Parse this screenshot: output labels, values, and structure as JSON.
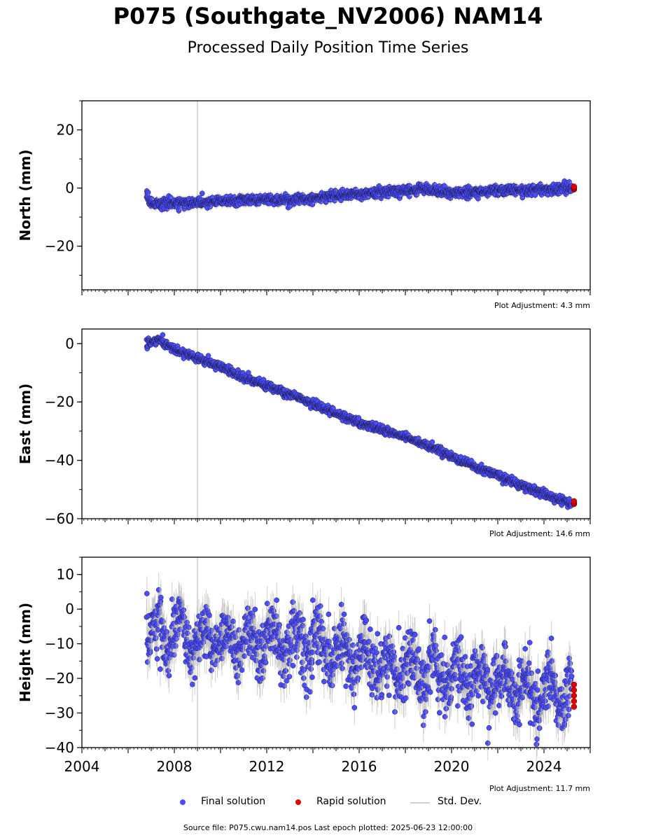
{
  "title": "P075 (Southgate_NV2006) NAM14",
  "subtitle": "Processed Daily Position Time Series",
  "legend": {
    "final": "Final solution",
    "rapid": "Rapid solution",
    "std": "Std. Dev."
  },
  "source": "Source file: P075.cwu.nam14.pos  Last epoch plotted: 2025-06-23 12:00:00",
  "colors": {
    "final": "#4b4bff",
    "rapid": "#e00000",
    "std": "#b0b0b0",
    "vline": "#cccccc"
  },
  "chart_data": [
    {
      "type": "scatter",
      "ylabel": "North (mm)",
      "ylim": [
        -35,
        30
      ],
      "xlim": [
        2004,
        2026
      ],
      "yticks": [
        -20,
        0,
        20
      ],
      "yticklabels": [
        "−20",
        "0",
        "20"
      ],
      "xticklabels": [],
      "adjustment": "Plot Adjustment: 4.3 mm",
      "vline_year": 2009,
      "series": [
        {
          "name": "Final solution",
          "x": [
            2006.8,
            2007.0,
            2007.5,
            2008.0,
            2008.5,
            2009.0,
            2010.0,
            2011.0,
            2012.0,
            2013.0,
            2014.0,
            2015.0,
            2016.0,
            2017.0,
            2018.0,
            2019.0,
            2020.0,
            2021.0,
            2022.0,
            2023.0,
            2024.0,
            2025.2
          ],
          "y": [
            -2,
            -5,
            -5.5,
            -5,
            -5,
            -4.8,
            -4.5,
            -4.3,
            -4,
            -4,
            -3.5,
            -2.5,
            -2,
            -1.5,
            -1,
            -0.5,
            -1.5,
            -1.5,
            -1,
            -0.8,
            -0.5,
            0
          ]
        },
        {
          "name": "Rapid solution",
          "x": [
            2025.3
          ],
          "y": [
            0
          ]
        }
      ]
    },
    {
      "type": "scatter",
      "ylabel": "East (mm)",
      "ylim": [
        -60,
        5
      ],
      "xlim": [
        2004,
        2026
      ],
      "yticks": [
        -60,
        -40,
        -20,
        0
      ],
      "yticklabels": [
        "−60",
        "−40",
        "−20",
        "0"
      ],
      "xticklabels": [],
      "adjustment": "Plot Adjustment: 14.6 mm",
      "vline_year": 2009,
      "series": [
        {
          "name": "Final solution",
          "x": [
            2006.8,
            2007.3,
            2008.0,
            2009.0,
            2010.0,
            2011.0,
            2012.0,
            2013.0,
            2014.0,
            2015.0,
            2016.0,
            2017.0,
            2018.0,
            2019.0,
            2020.0,
            2021.0,
            2022.0,
            2023.0,
            2024.0,
            2025.2
          ],
          "y": [
            -0.5,
            1.5,
            -2,
            -5,
            -8,
            -11.5,
            -14.5,
            -17.5,
            -20.5,
            -24,
            -27,
            -29.5,
            -32,
            -35,
            -38.5,
            -42,
            -45,
            -48.5,
            -51.5,
            -55
          ]
        },
        {
          "name": "Rapid solution",
          "x": [
            2025.3
          ],
          "y": [
            -54.5
          ]
        }
      ]
    },
    {
      "type": "scatter",
      "ylabel": "Height (mm)",
      "ylim": [
        -40,
        15
      ],
      "xlim": [
        2004,
        2026
      ],
      "yticks": [
        -40,
        -30,
        -20,
        -10,
        0,
        10
      ],
      "yticklabels": [
        "−40",
        "−30",
        "−20",
        "−10",
        "0",
        "10"
      ],
      "xticks": [
        2004,
        2008,
        2012,
        2016,
        2020,
        2024
      ],
      "xticklabels": [
        "2004",
        "2008",
        "2012",
        "2016",
        "2020",
        "2024"
      ],
      "adjustment": "Plot Adjustment: 11.7 mm",
      "vline_year": 2009,
      "series": [
        {
          "name": "Final solution",
          "x": [
            2006.8,
            2007.5,
            2008.0,
            2008.5,
            2009.0,
            2010.0,
            2011.0,
            2012.0,
            2013.0,
            2014.0,
            2015.0,
            2016.0,
            2017.0,
            2018.0,
            2019.0,
            2020.0,
            2021.0,
            2022.0,
            2023.0,
            2024.0,
            2025.2
          ],
          "y": [
            -5,
            -7,
            -6,
            -8,
            -9,
            -9,
            -10,
            -9,
            -10,
            -10,
            -12,
            -14,
            -16,
            -17,
            -18,
            -19,
            -20,
            -21,
            -22,
            -24,
            -24
          ]
        },
        {
          "name": "Rapid solution",
          "x": [
            2025.3
          ],
          "y": [
            -25
          ]
        }
      ]
    }
  ]
}
